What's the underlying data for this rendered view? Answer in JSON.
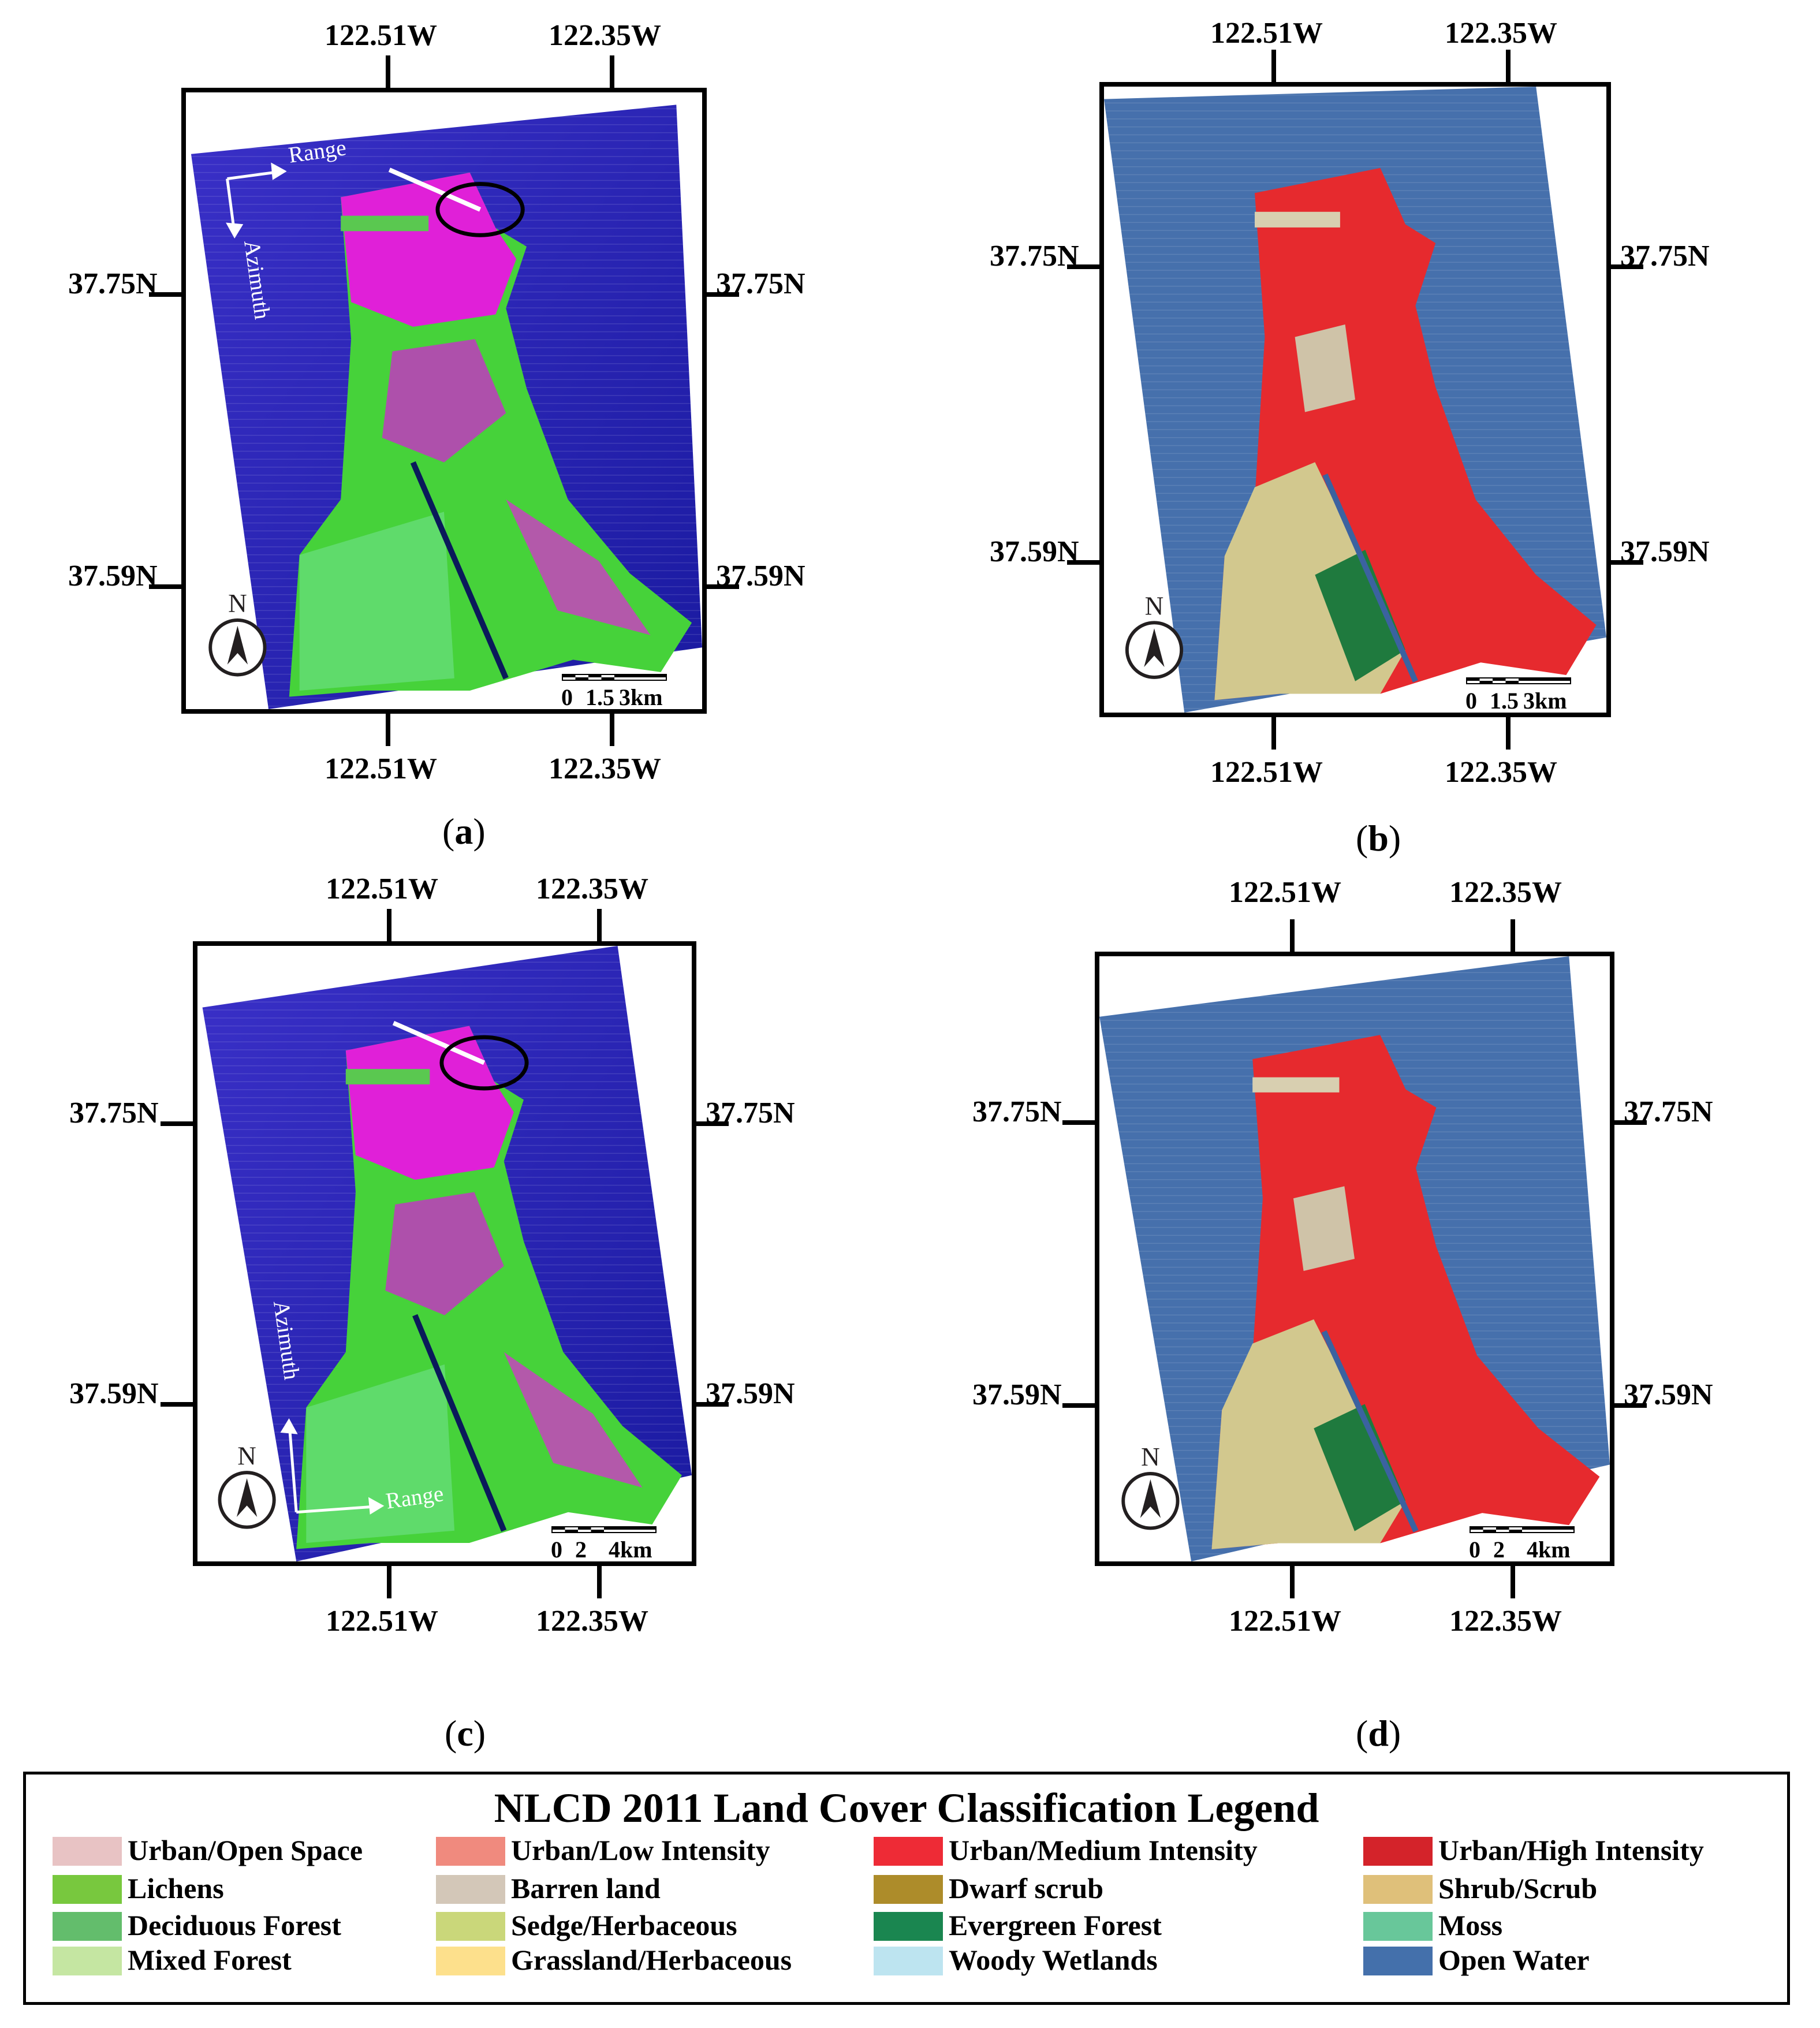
{
  "panels": [
    {
      "type": "sar",
      "label_open": "(",
      "label_letter": "a",
      "label_close": ")",
      "lon_left": "122.51W",
      "lon_right": "122.35W",
      "lat_upper": "37.75N",
      "lat_lower": "37.59N",
      "scale_labels": [
        "0",
        "1.5",
        "3km"
      ],
      "range_text": "Range",
      "azimuth_text": "Azimuth",
      "north_text": "N"
    },
    {
      "type": "nlcd",
      "label_open": "(",
      "label_letter": "b",
      "label_close": ")",
      "lon_left": "122.51W",
      "lon_right": "122.35W",
      "lat_upper": "37.75N",
      "lat_lower": "37.59N",
      "scale_labels": [
        "0",
        "1.5",
        "3km"
      ],
      "north_text": "N"
    },
    {
      "type": "sar",
      "label_open": "(",
      "label_letter": "c",
      "label_close": ")",
      "lon_left": "122.51W",
      "lon_right": "122.35W",
      "lat_upper": "37.75N",
      "lat_lower": "37.59N",
      "scale_labels": [
        "0",
        "2",
        "4km"
      ],
      "range_text": "Range",
      "azimuth_text": "Azimuth",
      "north_text": "N"
    },
    {
      "type": "nlcd",
      "label_open": "(",
      "label_letter": "d",
      "label_close": ")",
      "lon_left": "122.51W",
      "lon_right": "122.35W",
      "lat_upper": "37.75N",
      "lat_lower": "37.59N",
      "scale_labels": [
        "0",
        "2",
        "4km"
      ],
      "north_text": "N"
    }
  ],
  "legend": {
    "title": "NLCD 2011 Land Cover Classification Legend",
    "items": [
      {
        "label": "Urban/Open Space",
        "color": "#e8c3c4"
      },
      {
        "label": "Urban/Low Intensity",
        "color": "#f08a7e"
      },
      {
        "label": "Urban/Medium Intensity",
        "color": "#ee2b36"
      },
      {
        "label": "Urban/High Intensity",
        "color": "#d4232a"
      },
      {
        "label": "Lichens",
        "color": "#78c83e"
      },
      {
        "label": "Barren land",
        "color": "#d3c7b8"
      },
      {
        "label": "Dwarf scrub",
        "color": "#ad8c2a"
      },
      {
        "label": "Shrub/Scrub",
        "color": "#dfc07a"
      },
      {
        "label": "Deciduous Forest",
        "color": "#63bd6c"
      },
      {
        "label": "Sedge/Herbaceous",
        "color": "#cad77a"
      },
      {
        "label": "Evergreen Forest",
        "color": "#1a8650"
      },
      {
        "label": "Moss",
        "color": "#68c79a"
      },
      {
        "label": "Mixed Forest",
        "color": "#c5e6a2"
      },
      {
        "label": "Grassland/Herbaceous",
        "color": "#fde08c"
      },
      {
        "label": "Woody Wetlands",
        "color": "#bde4f0"
      },
      {
        "label": "Open Water",
        "color": "#4470ab"
      }
    ]
  }
}
